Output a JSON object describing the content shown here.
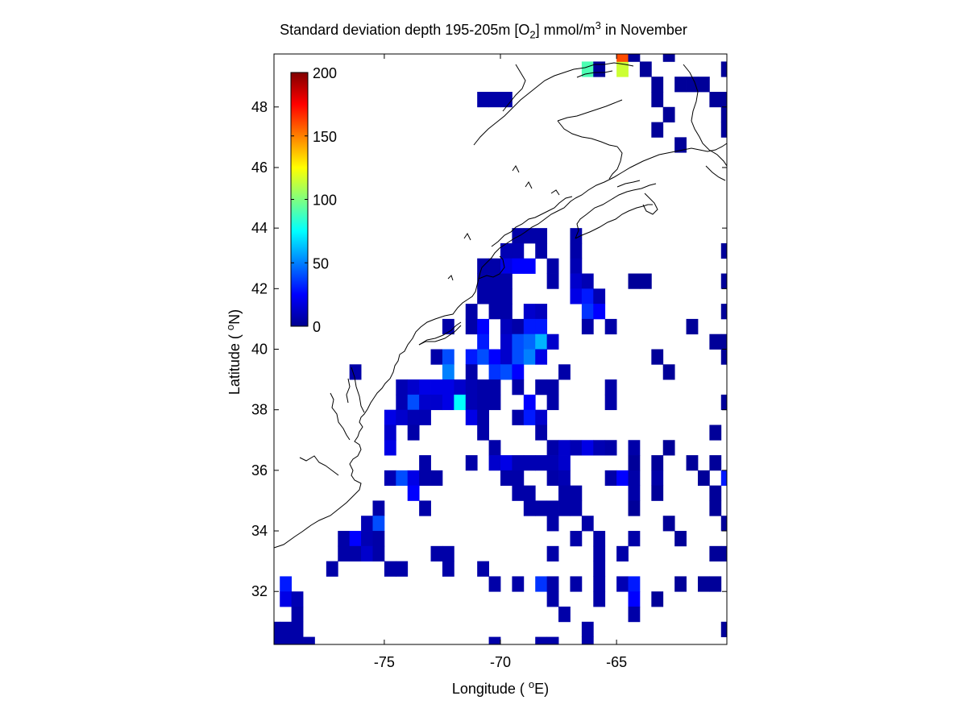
{
  "chart_data": {
    "type": "heatmap",
    "title_parts": {
      "pre": "Standard deviation depth 195-205m [O",
      "sub": "2",
      "mid": "] mmol/m",
      "sup": "3",
      "post": " in November"
    },
    "xlabel_parts": {
      "pre": "Longitude ( ",
      "sup": "o",
      "post": "E)"
    },
    "ylabel_parts": {
      "pre": "Latitude ( ",
      "sup": "o",
      "post": "N)"
    },
    "xlim": [
      -79.75,
      -60.25
    ],
    "ylim": [
      30.25,
      49.75
    ],
    "xticks": [
      -75,
      -70,
      -65
    ],
    "xtick_labels": [
      "-75",
      "-70",
      "-65"
    ],
    "yticks": [
      32,
      34,
      36,
      38,
      40,
      42,
      44,
      46,
      48
    ],
    "ytick_labels": [
      "32",
      "34",
      "36",
      "38",
      "40",
      "42",
      "44",
      "46",
      "48"
    ],
    "cell_size_deg": 0.5,
    "colormap": "jet",
    "clim": [
      0,
      200
    ],
    "colorbar": {
      "ticks": [
        0,
        50,
        100,
        150,
        200
      ],
      "tick_labels": [
        "0",
        "50",
        "100",
        "150",
        "200"
      ],
      "placement": "inside upper-left"
    },
    "cells_note": "each cell is [longitude center (deg E), latitude center (deg N), std dev value]",
    "cells": [
      [
        -66.25,
        49.25,
        90
      ],
      [
        -65.75,
        49.25,
        5
      ],
      [
        -64.75,
        49.25,
        115
      ],
      [
        -64.75,
        49.75,
        160
      ],
      [
        -64.25,
        49.75,
        5
      ],
      [
        -63.75,
        49.25,
        5
      ],
      [
        -62.75,
        49.75,
        5
      ],
      [
        -60.25,
        49.25,
        5
      ],
      [
        -70.75,
        48.25,
        8
      ],
      [
        -70.25,
        48.25,
        8
      ],
      [
        -69.75,
        48.25,
        8
      ],
      [
        -63.25,
        48.75,
        5
      ],
      [
        -63.25,
        48.25,
        5
      ],
      [
        -62.25,
        48.75,
        5
      ],
      [
        -61.75,
        48.75,
        5
      ],
      [
        -61.25,
        48.75,
        5
      ],
      [
        -60.75,
        48.25,
        5
      ],
      [
        -60.25,
        48.25,
        5
      ],
      [
        -60.25,
        47.75,
        5
      ],
      [
        -62.75,
        47.75,
        5
      ],
      [
        -63.25,
        47.25,
        5
      ],
      [
        -60.25,
        47.25,
        5
      ],
      [
        -62.25,
        46.75,
        5
      ],
      [
        -69.25,
        43.75,
        8
      ],
      [
        -68.75,
        43.75,
        8
      ],
      [
        -68.25,
        43.75,
        8
      ],
      [
        -69.75,
        43.25,
        10
      ],
      [
        -69.25,
        43.25,
        10
      ],
      [
        -68.25,
        43.25,
        8
      ],
      [
        -67.75,
        42.75,
        8
      ],
      [
        -66.75,
        43.75,
        8
      ],
      [
        -66.75,
        43.25,
        8
      ],
      [
        -66.75,
        42.75,
        10
      ],
      [
        -60.25,
        43.25,
        5
      ],
      [
        -70.75,
        42.75,
        8
      ],
      [
        -70.25,
        42.75,
        8
      ],
      [
        -69.75,
        42.75,
        20
      ],
      [
        -69.25,
        42.75,
        25
      ],
      [
        -68.75,
        42.75,
        25
      ],
      [
        -70.75,
        42.25,
        8
      ],
      [
        -70.25,
        42.25,
        8
      ],
      [
        -69.75,
        42.25,
        8
      ],
      [
        -70.75,
        41.75,
        8
      ],
      [
        -70.25,
        41.75,
        8
      ],
      [
        -69.75,
        41.75,
        8
      ],
      [
        -67.75,
        42.25,
        8
      ],
      [
        -66.75,
        42.25,
        15
      ],
      [
        -66.25,
        42.25,
        10
      ],
      [
        -64.25,
        42.25,
        5
      ],
      [
        -63.75,
        42.25,
        5
      ],
      [
        -60.25,
        42.25,
        5
      ],
      [
        -66.75,
        41.75,
        20
      ],
      [
        -66.25,
        41.75,
        30
      ],
      [
        -65.75,
        41.75,
        10
      ],
      [
        -66.25,
        41.25,
        35
      ],
      [
        -65.75,
        41.25,
        25
      ],
      [
        -60.25,
        41.25,
        5
      ],
      [
        -71.25,
        41.25,
        8
      ],
      [
        -70.25,
        41.25,
        8
      ],
      [
        -69.75,
        41.25,
        8
      ],
      [
        -68.75,
        41.25,
        15
      ],
      [
        -68.25,
        41.25,
        12
      ],
      [
        -72.25,
        40.75,
        8
      ],
      [
        -71.25,
        40.75,
        8
      ],
      [
        -70.75,
        40.75,
        25
      ],
      [
        -69.75,
        40.75,
        12
      ],
      [
        -69.25,
        40.75,
        8
      ],
      [
        -68.75,
        40.75,
        30
      ],
      [
        -68.25,
        40.75,
        30
      ],
      [
        -66.25,
        40.75,
        8
      ],
      [
        -65.25,
        40.75,
        8
      ],
      [
        -61.75,
        40.75,
        5
      ],
      [
        -70.75,
        40.25,
        30
      ],
      [
        -69.75,
        40.25,
        15
      ],
      [
        -69.25,
        40.25,
        40
      ],
      [
        -68.75,
        40.25,
        45
      ],
      [
        -68.25,
        40.25,
        60
      ],
      [
        -67.75,
        40.25,
        15
      ],
      [
        -60.75,
        40.25,
        5
      ],
      [
        -60.25,
        40.25,
        5
      ],
      [
        -72.75,
        39.75,
        8
      ],
      [
        -72.25,
        39.75,
        40
      ],
      [
        -71.25,
        39.75,
        30
      ],
      [
        -70.75,
        39.75,
        40
      ],
      [
        -70.25,
        39.75,
        25
      ],
      [
        -69.75,
        39.75,
        15
      ],
      [
        -69.25,
        39.75,
        40
      ],
      [
        -68.75,
        39.75,
        50
      ],
      [
        -68.25,
        39.75,
        20
      ],
      [
        -63.25,
        39.75,
        5
      ],
      [
        -60.25,
        39.75,
        5
      ],
      [
        -76.25,
        39.25,
        8
      ],
      [
        -72.25,
        39.25,
        50
      ],
      [
        -71.25,
        39.25,
        8
      ],
      [
        -70.25,
        39.25,
        35
      ],
      [
        -69.75,
        39.25,
        40
      ],
      [
        -69.25,
        39.25,
        25
      ],
      [
        -67.25,
        39.25,
        8
      ],
      [
        -62.75,
        39.25,
        5
      ],
      [
        -74.25,
        38.75,
        10
      ],
      [
        -73.75,
        38.75,
        15
      ],
      [
        -73.25,
        38.75,
        20
      ],
      [
        -72.75,
        38.75,
        20
      ],
      [
        -72.25,
        38.75,
        20
      ],
      [
        -71.75,
        38.75,
        15
      ],
      [
        -71.25,
        38.75,
        10
      ],
      [
        -70.75,
        38.75,
        8
      ],
      [
        -70.25,
        38.75,
        8
      ],
      [
        -69.25,
        38.75,
        8
      ],
      [
        -68.25,
        38.75,
        8
      ],
      [
        -67.75,
        38.75,
        8
      ],
      [
        -65.25,
        38.75,
        8
      ],
      [
        -74.25,
        38.25,
        10
      ],
      [
        -73.75,
        38.25,
        40
      ],
      [
        -73.25,
        38.25,
        15
      ],
      [
        -72.75,
        38.25,
        15
      ],
      [
        -72.25,
        38.25,
        20
      ],
      [
        -71.75,
        38.25,
        75
      ],
      [
        -71.25,
        38.25,
        10
      ],
      [
        -70.75,
        38.25,
        8
      ],
      [
        -70.25,
        38.25,
        8
      ],
      [
        -68.75,
        38.25,
        25
      ],
      [
        -67.75,
        38.25,
        8
      ],
      [
        -65.25,
        38.25,
        8
      ],
      [
        -60.25,
        38.25,
        5
      ],
      [
        -74.75,
        37.75,
        20
      ],
      [
        -74.25,
        37.75,
        15
      ],
      [
        -73.75,
        37.75,
        10
      ],
      [
        -73.25,
        37.75,
        10
      ],
      [
        -71.25,
        37.75,
        20
      ],
      [
        -70.75,
        37.75,
        8
      ],
      [
        -69.25,
        37.75,
        8
      ],
      [
        -68.75,
        37.75,
        30
      ],
      [
        -68.25,
        37.75,
        15
      ],
      [
        -74.75,
        37.25,
        15
      ],
      [
        -73.75,
        37.25,
        8
      ],
      [
        -70.75,
        37.25,
        8
      ],
      [
        -68.25,
        37.25,
        8
      ],
      [
        -60.75,
        37.25,
        5
      ],
      [
        -74.75,
        36.75,
        20
      ],
      [
        -70.25,
        36.75,
        8
      ],
      [
        -67.75,
        36.75,
        8
      ],
      [
        -67.25,
        36.75,
        15
      ],
      [
        -66.75,
        36.75,
        10
      ],
      [
        -66.25,
        36.75,
        20
      ],
      [
        -65.75,
        36.75,
        10
      ],
      [
        -65.25,
        36.75,
        8
      ],
      [
        -64.25,
        36.75,
        8
      ],
      [
        -62.75,
        36.75,
        5
      ],
      [
        -73.25,
        36.25,
        8
      ],
      [
        -71.25,
        36.25,
        8
      ],
      [
        -70.25,
        36.25,
        15
      ],
      [
        -69.75,
        36.25,
        20
      ],
      [
        -69.25,
        36.25,
        10
      ],
      [
        -68.75,
        36.25,
        10
      ],
      [
        -68.25,
        36.25,
        10
      ],
      [
        -67.75,
        36.25,
        10
      ],
      [
        -67.25,
        36.25,
        15
      ],
      [
        -64.25,
        36.25,
        5
      ],
      [
        -63.25,
        36.25,
        5
      ],
      [
        -61.75,
        36.25,
        5
      ],
      [
        -60.75,
        36.25,
        5
      ],
      [
        -74.75,
        35.75,
        10
      ],
      [
        -74.25,
        35.75,
        40
      ],
      [
        -73.75,
        35.75,
        20
      ],
      [
        -73.25,
        35.75,
        8
      ],
      [
        -72.75,
        35.75,
        8
      ],
      [
        -69.75,
        35.75,
        8
      ],
      [
        -69.25,
        35.75,
        8
      ],
      [
        -67.75,
        35.75,
        8
      ],
      [
        -67.25,
        35.75,
        10
      ],
      [
        -65.25,
        35.75,
        8
      ],
      [
        -64.75,
        35.75,
        25
      ],
      [
        -64.25,
        35.75,
        8
      ],
      [
        -63.25,
        35.75,
        8
      ],
      [
        -61.25,
        35.75,
        5
      ],
      [
        -60.25,
        35.75,
        30
      ],
      [
        -73.75,
        35.25,
        25
      ],
      [
        -69.25,
        35.25,
        8
      ],
      [
        -68.75,
        35.25,
        8
      ],
      [
        -67.25,
        35.25,
        8
      ],
      [
        -66.75,
        35.25,
        8
      ],
      [
        -64.25,
        35.25,
        8
      ],
      [
        -63.25,
        35.25,
        5
      ],
      [
        -60.75,
        35.25,
        5
      ],
      [
        -75.25,
        34.75,
        8
      ],
      [
        -73.25,
        34.75,
        8
      ],
      [
        -68.75,
        34.75,
        8
      ],
      [
        -68.25,
        34.75,
        8
      ],
      [
        -67.75,
        34.75,
        8
      ],
      [
        -67.25,
        34.75,
        8
      ],
      [
        -66.75,
        34.75,
        8
      ],
      [
        -64.25,
        34.75,
        5
      ],
      [
        -60.75,
        34.75,
        5
      ],
      [
        -75.75,
        34.25,
        10
      ],
      [
        -75.25,
        34.25,
        40
      ],
      [
        -67.75,
        34.25,
        8
      ],
      [
        -66.25,
        34.25,
        8
      ],
      [
        -62.75,
        34.25,
        5
      ],
      [
        -60.25,
        34.25,
        5
      ],
      [
        -76.75,
        33.75,
        8
      ],
      [
        -76.25,
        33.75,
        25
      ],
      [
        -75.75,
        33.75,
        10
      ],
      [
        -75.25,
        33.75,
        8
      ],
      [
        -66.75,
        33.75,
        8
      ],
      [
        -65.75,
        33.75,
        8
      ],
      [
        -64.25,
        33.75,
        8
      ],
      [
        -62.25,
        33.75,
        5
      ],
      [
        -76.75,
        33.25,
        8
      ],
      [
        -76.25,
        33.25,
        8
      ],
      [
        -75.75,
        33.25,
        15
      ],
      [
        -75.25,
        33.25,
        8
      ],
      [
        -72.75,
        33.25,
        8
      ],
      [
        -72.25,
        33.25,
        8
      ],
      [
        -67.75,
        33.25,
        8
      ],
      [
        -65.75,
        33.25,
        8
      ],
      [
        -64.75,
        33.25,
        8
      ],
      [
        -60.75,
        33.25,
        5
      ],
      [
        -60.25,
        33.25,
        5
      ],
      [
        -77.25,
        32.75,
        8
      ],
      [
        -74.75,
        32.75,
        8
      ],
      [
        -74.25,
        32.75,
        8
      ],
      [
        -72.25,
        32.75,
        8
      ],
      [
        -70.75,
        32.75,
        8
      ],
      [
        -65.75,
        32.75,
        8
      ],
      [
        -79.25,
        32.25,
        30
      ],
      [
        -70.25,
        32.25,
        8
      ],
      [
        -69.25,
        32.25,
        8
      ],
      [
        -68.25,
        32.25,
        35
      ],
      [
        -67.75,
        32.25,
        8
      ],
      [
        -66.75,
        32.25,
        8
      ],
      [
        -65.75,
        32.25,
        8
      ],
      [
        -64.75,
        32.25,
        10
      ],
      [
        -64.25,
        32.25,
        30
      ],
      [
        -62.25,
        32.25,
        5
      ],
      [
        -61.25,
        32.25,
        5
      ],
      [
        -60.75,
        32.25,
        5
      ],
      [
        -79.25,
        31.75,
        20
      ],
      [
        -78.75,
        31.75,
        10
      ],
      [
        -67.75,
        31.75,
        8
      ],
      [
        -65.75,
        31.75,
        8
      ],
      [
        -64.25,
        31.75,
        25
      ],
      [
        -63.25,
        31.75,
        5
      ],
      [
        -78.75,
        31.25,
        8
      ],
      [
        -67.25,
        31.25,
        8
      ],
      [
        -64.25,
        31.25,
        8
      ],
      [
        -79.75,
        30.75,
        8
      ],
      [
        -79.25,
        30.75,
        8
      ],
      [
        -78.75,
        30.75,
        8
      ],
      [
        -66.25,
        30.75,
        8
      ],
      [
        -60.25,
        30.75,
        5
      ],
      [
        -79.75,
        30.25,
        8
      ],
      [
        -79.25,
        30.25,
        8
      ],
      [
        -78.75,
        30.25,
        8
      ],
      [
        -78.25,
        30.25,
        8
      ],
      [
        -70.25,
        30.25,
        8
      ],
      [
        -68.25,
        30.25,
        8
      ],
      [
        -67.75,
        30.25,
        8
      ],
      [
        -66.25,
        30.25,
        8
      ]
    ]
  }
}
